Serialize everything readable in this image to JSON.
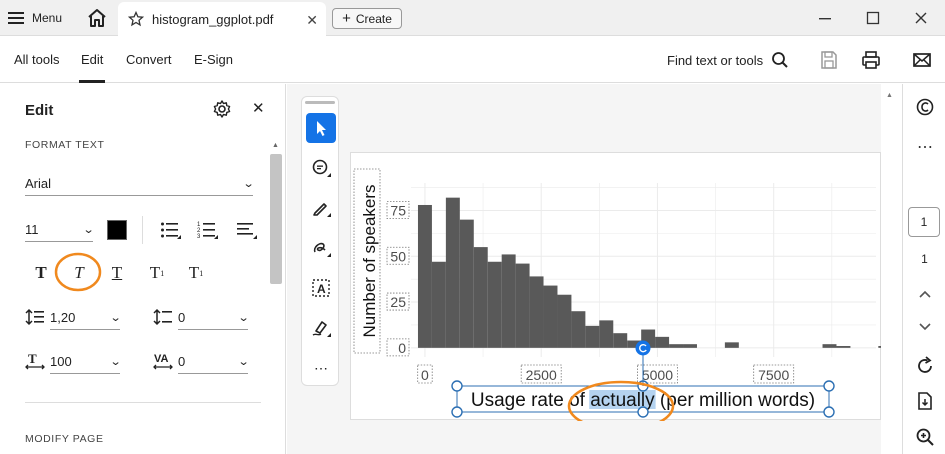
{
  "tabbar": {
    "menu_label": "Menu",
    "doc_tab_title": "histogram_ggplot.pdf",
    "create_label": "Create"
  },
  "toolbar": {
    "all_tools": "All tools",
    "edit": "Edit",
    "convert": "Convert",
    "esign": "E-Sign",
    "find_label": "Find text or tools"
  },
  "left_panel": {
    "title": "Edit",
    "format_text_heading": "FORMAT TEXT",
    "font_family": "Arial",
    "font_size": "11",
    "text_color": "#000000",
    "line_spacing": "1,20",
    "paragraph_spacing": "0",
    "horizontal_scale": "100",
    "char_spacing": "0",
    "modify_page_heading": "MODIFY PAGE"
  },
  "chart_data": {
    "type": "bar",
    "xlabel_parts": [
      "Usage rate of ",
      "actually",
      " (per million words)"
    ],
    "ylabel": "Number of speakers",
    "x_ticks": [
      "0",
      "2500",
      "5000",
      "7500"
    ],
    "y_ticks": [
      "0",
      "25",
      "50",
      "75"
    ],
    "xlim": [
      -300,
      9700
    ],
    "ylim": [
      -5,
      90
    ],
    "bin_width": 300,
    "bin_start": -150,
    "values": [
      78,
      47,
      82,
      70,
      55,
      47,
      51,
      46,
      39,
      34,
      29,
      20,
      12,
      15,
      8,
      4,
      10,
      6,
      2,
      2,
      0,
      0,
      3,
      0,
      0,
      0,
      0,
      0,
      0,
      2,
      1,
      0,
      0,
      1,
      2,
      0,
      0,
      1,
      0,
      0
    ],
    "bar_color": "#595959",
    "selected_word_color": "#b5d3f0",
    "annotation_color": "#f0891e"
  },
  "right_rail": {
    "current_page": "1",
    "total_pages": "1"
  }
}
